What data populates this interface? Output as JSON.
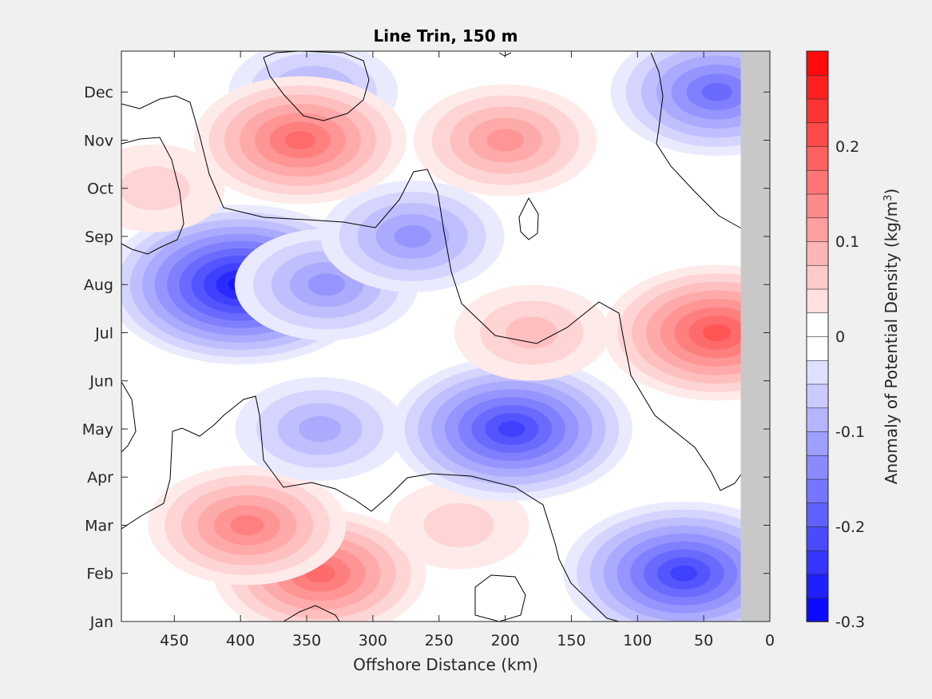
{
  "chart_data": {
    "type": "heatmap",
    "title": "Line Trin, 150 m",
    "xlabel": "Offshore Distance (km)",
    "ylabel": "",
    "xlim": [
      490,
      0
    ],
    "x_reversed": true,
    "x_ticks": [
      450,
      400,
      350,
      300,
      250,
      200,
      150,
      100,
      50,
      0
    ],
    "y_ticks": [
      "Jan",
      "Feb",
      "Mar",
      "Apr",
      "May",
      "Jun",
      "Jul",
      "Aug",
      "Sep",
      "Oct",
      "Nov",
      "Dec"
    ],
    "colorbar": {
      "label": "Anomaly of Potential Density (kg/m",
      "label_superscript": "3",
      "label_close": ")",
      "range": [
        -0.3,
        0.3
      ],
      "step": 0.025,
      "ticks": [
        -0.3,
        -0.2,
        -0.1,
        0,
        0.1,
        0.2
      ],
      "tick_labels": [
        "-0.3",
        "-0.2",
        "-0.1",
        "0",
        "0.1",
        "0.2"
      ]
    },
    "nodata_region_km": [
      0,
      22
    ],
    "features": [
      {
        "label": "positive anomaly",
        "x": 340,
        "y": "Feb",
        "value": 0.18
      },
      {
        "label": "positive anomaly",
        "x": 395,
        "y": "Mar",
        "value": 0.16
      },
      {
        "label": "positive anomaly",
        "x": 235,
        "y": "Mar",
        "value": 0.06
      },
      {
        "label": "negative anomaly",
        "x": 400,
        "y": "Aug",
        "value": -0.27
      },
      {
        "label": "negative anomaly",
        "x": 335,
        "y": "Aug",
        "value": -0.13
      },
      {
        "label": "negative anomaly",
        "x": 270,
        "y": "Sep",
        "value": -0.12
      },
      {
        "label": "negative anomaly",
        "x": 195,
        "y": "May",
        "value": -0.22
      },
      {
        "label": "negative anomaly",
        "x": 65,
        "y": "Feb",
        "value": -0.22
      },
      {
        "label": "negative anomaly",
        "x": 340,
        "y": "May",
        "value": -0.11
      },
      {
        "label": "negative anomaly",
        "x": 40,
        "y": "Dec",
        "value": -0.18
      },
      {
        "label": "negative anomaly",
        "x": 345,
        "y": "Dec",
        "value": -0.1
      },
      {
        "label": "positive anomaly",
        "x": 40,
        "y": "Jul",
        "value": 0.2
      },
      {
        "label": "positive anomaly",
        "x": 355,
        "y": "Nov",
        "value": 0.17
      },
      {
        "label": "positive anomaly",
        "x": 200,
        "y": "Nov",
        "value": 0.12
      },
      {
        "label": "positive anomaly",
        "x": 465,
        "y": "Oct",
        "value": 0.05
      },
      {
        "label": "positive anomaly",
        "x": 180,
        "y": "Jul",
        "value": 0.08
      }
    ]
  }
}
